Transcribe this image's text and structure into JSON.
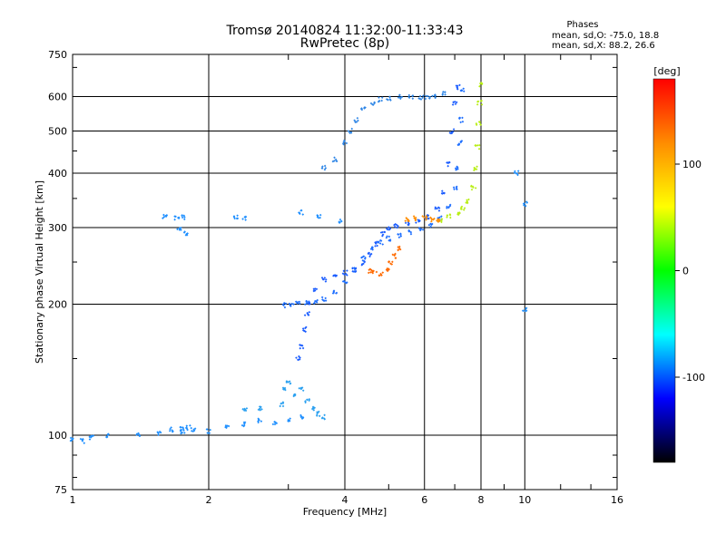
{
  "chart_data": {
    "type": "scatter",
    "title": "Tromsø 20140824 11:32:00-11:33:43",
    "subtitle": "RwPretec (8p)",
    "xlabel": "Frequency [MHz]",
    "ylabel": "Stationary phase Virtual Height [km]",
    "xscale": "log",
    "yscale": "log",
    "xlim": [
      1,
      16
    ],
    "ylim": [
      75,
      750
    ],
    "xticks": [
      1,
      2,
      4,
      6,
      8,
      10,
      16
    ],
    "xtick_labels": [
      "1",
      "2",
      "4",
      "6",
      "8",
      "10",
      "16"
    ],
    "yticks": [
      75,
      100,
      200,
      300,
      400,
      500,
      600,
      750
    ],
    "ytick_labels": [
      "75",
      "100",
      "200",
      "300",
      "400",
      "500",
      "600",
      "750"
    ],
    "grid": true,
    "phases_box": {
      "title": "Phases",
      "line1": "mean, sd,O:  -75.0, 18.8",
      "line2": "mean, sd,X:   88.2, 26.6"
    },
    "colorbar": {
      "label": "[deg]",
      "range": [
        -180,
        180
      ],
      "ticks": [
        100,
        0,
        -100
      ],
      "tick_labels": [
        "100",
        "0",
        "-100"
      ],
      "colors": [
        "#ff0000",
        "#ff8c00",
        "#ffff00",
        "#00ff00",
        "#00ffff",
        "#0000ff",
        "#000000"
      ]
    },
    "traces": [
      {
        "name": "",
        "color": "#1e8fff",
        "points": [
          [
            1.0,
            98
          ],
          [
            1.05,
            97
          ],
          [
            1.1,
            99
          ],
          [
            1.2,
            100
          ],
          [
            1.4,
            100
          ],
          [
            1.55,
            101
          ],
          [
            1.65,
            103
          ],
          [
            1.75,
            104
          ],
          [
            1.85,
            103
          ],
          [
            2.0,
            102
          ],
          [
            2.2,
            104
          ],
          [
            2.4,
            106
          ],
          [
            2.6,
            108
          ],
          [
            2.8,
            107
          ],
          [
            3.0,
            109
          ],
          [
            3.2,
            110
          ]
        ]
      },
      {
        "name": "",
        "color": "#1e6fff",
        "points": [
          [
            2.95,
            199
          ],
          [
            3.05,
            200
          ],
          [
            3.15,
            201
          ],
          [
            3.3,
            201
          ],
          [
            3.45,
            202
          ],
          [
            3.6,
            206
          ],
          [
            3.8,
            213
          ],
          [
            4.0,
            225
          ],
          [
            4.2,
            240
          ],
          [
            4.4,
            255
          ],
          [
            4.6,
            268
          ],
          [
            4.8,
            277
          ],
          [
            5.0,
            283
          ],
          [
            5.3,
            288
          ],
          [
            5.6,
            293
          ],
          [
            5.9,
            298
          ],
          [
            6.2,
            304
          ],
          [
            6.5,
            315
          ],
          [
            6.8,
            335
          ],
          [
            7.0,
            370
          ],
          [
            7.1,
            410
          ],
          [
            7.2,
            470
          ],
          [
            7.25,
            530
          ],
          [
            7.3,
            620
          ]
        ]
      },
      {
        "name": "",
        "color": "#1a5cff",
        "points": [
          [
            3.15,
            150
          ],
          [
            3.2,
            160
          ],
          [
            3.25,
            175
          ],
          [
            3.3,
            190
          ],
          [
            3.35,
            200
          ],
          [
            3.45,
            215
          ],
          [
            3.6,
            228
          ],
          [
            3.8,
            234
          ],
          [
            4.0,
            236
          ],
          [
            4.2,
            240
          ],
          [
            4.4,
            248
          ],
          [
            4.55,
            260
          ],
          [
            4.7,
            275
          ],
          [
            4.85,
            290
          ],
          [
            5.0,
            300
          ],
          [
            5.2,
            303
          ],
          [
            5.5,
            306
          ],
          [
            5.8,
            310
          ],
          [
            6.1,
            318
          ],
          [
            6.4,
            330
          ],
          [
            6.6,
            360
          ],
          [
            6.8,
            420
          ],
          [
            6.9,
            500
          ],
          [
            7.0,
            580
          ],
          [
            7.1,
            630
          ]
        ]
      },
      {
        "name": "",
        "color": "#2f86e6",
        "points": [
          [
            3.6,
            412
          ],
          [
            3.8,
            430
          ],
          [
            4.0,
            470
          ],
          [
            4.1,
            500
          ],
          [
            4.25,
            530
          ],
          [
            4.4,
            560
          ],
          [
            4.6,
            580
          ],
          [
            4.8,
            590
          ],
          [
            5.0,
            595
          ],
          [
            5.3,
            598
          ],
          [
            5.6,
            598
          ],
          [
            5.9,
            597
          ],
          [
            6.1,
            598
          ],
          [
            6.3,
            600
          ],
          [
            6.6,
            610
          ]
        ]
      },
      {
        "name": "",
        "color": "#ff6a00",
        "points": [
          [
            4.55,
            238
          ],
          [
            4.65,
            236
          ],
          [
            4.8,
            235
          ],
          [
            4.95,
            240
          ],
          [
            5.05,
            248
          ],
          [
            5.15,
            258
          ],
          [
            5.25,
            268
          ]
        ]
      },
      {
        "name": "",
        "color": "#b8ee16",
        "points": [
          [
            6.5,
            312
          ],
          [
            6.8,
            318
          ],
          [
            7.1,
            325
          ],
          [
            7.3,
            332
          ],
          [
            7.5,
            345
          ],
          [
            7.7,
            370
          ],
          [
            7.8,
            410
          ],
          [
            7.85,
            460
          ],
          [
            7.9,
            520
          ],
          [
            7.95,
            580
          ],
          [
            8.0,
            640
          ]
        ]
      },
      {
        "name": "",
        "color": "#ff8c00",
        "points": [
          [
            5.5,
            312
          ],
          [
            5.75,
            315
          ],
          [
            6.0,
            315
          ],
          [
            6.25,
            313
          ],
          [
            6.45,
            311
          ]
        ]
      },
      {
        "name": "",
        "color": "#2aa0f0",
        "points": [
          [
            2.9,
            118
          ],
          [
            2.95,
            128
          ],
          [
            3.0,
            132
          ],
          [
            3.1,
            123
          ],
          [
            3.2,
            128
          ],
          [
            3.3,
            120
          ],
          [
            3.4,
            115
          ],
          [
            3.5,
            112
          ],
          [
            3.6,
            110
          ],
          [
            2.6,
            115
          ],
          [
            2.4,
            114
          ]
        ]
      },
      {
        "name": "",
        "color": "#1e8fff",
        "points": [
          [
            1.6,
            317
          ],
          [
            1.7,
            315
          ],
          [
            1.75,
            317
          ],
          [
            1.72,
            299
          ],
          [
            1.78,
            290
          ],
          [
            2.3,
            317
          ],
          [
            2.4,
            316
          ],
          [
            3.2,
            325
          ],
          [
            3.5,
            317
          ],
          [
            3.9,
            310
          ],
          [
            9.6,
            400
          ],
          [
            10.0,
            340
          ],
          [
            10.0,
            195
          ],
          [
            1.75,
            102
          ],
          [
            1.8,
            104
          ]
        ]
      }
    ]
  }
}
